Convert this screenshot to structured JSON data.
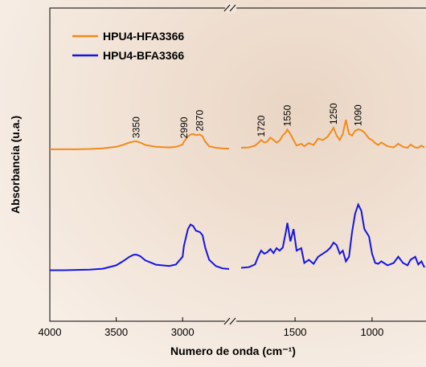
{
  "chart_data": {
    "type": "line",
    "x_label": "Numero de onda (cm⁻¹)",
    "y_label": "Absorbancia (u.a.)",
    "xlim": [
      4000,
      650
    ],
    "x_break": [
      2650,
      1850
    ],
    "ylim": [
      -2,
      100
    ],
    "xticks": [
      4000,
      3500,
      3000,
      1500,
      1000
    ],
    "peak_labels": [
      3350,
      2990,
      2870,
      1720,
      1550,
      1250,
      1090
    ],
    "x": [
      4000,
      3900,
      3800,
      3700,
      3600,
      3500,
      3450,
      3400,
      3370,
      3350,
      3320,
      3280,
      3200,
      3100,
      3050,
      3000,
      2990,
      2960,
      2940,
      2920,
      2900,
      2870,
      2850,
      2830,
      2800,
      2750,
      2700,
      2650,
      2200,
      1850,
      1800,
      1760,
      1740,
      1720,
      1700,
      1680,
      1660,
      1640,
      1620,
      1600,
      1580,
      1560,
      1550,
      1530,
      1510,
      1490,
      1460,
      1440,
      1410,
      1380,
      1350,
      1320,
      1290,
      1270,
      1250,
      1230,
      1210,
      1190,
      1170,
      1150,
      1130,
      1110,
      1090,
      1070,
      1050,
      1020,
      1000,
      980,
      960,
      940,
      900,
      860,
      830,
      800,
      770,
      750,
      720,
      700,
      680,
      660
    ],
    "series": [
      {
        "name": "HPU4-HFA3366",
        "color": "#f28a1e",
        "values": [
          54,
          54,
          54,
          54.1,
          54.3,
          54.8,
          55.4,
          56.2,
          56.5,
          56.6,
          56.2,
          55.4,
          54.8,
          54.6,
          54.8,
          55.5,
          56.5,
          58.2,
          58.8,
          59,
          58.6,
          58.8,
          58.2,
          56.5,
          55,
          54.5,
          54.3,
          54.2,
          null,
          54.5,
          54.6,
          55.2,
          56,
          57,
          56.2,
          56.5,
          57.8,
          57,
          56.2,
          56.8,
          58.5,
          59.5,
          60.4,
          59,
          57,
          55.2,
          55.8,
          55,
          56,
          55.4,
          57.5,
          57,
          58,
          59.5,
          61,
          58.5,
          57,
          59,
          63.6,
          59,
          58.5,
          60,
          60.5,
          60.2,
          59.5,
          57.5,
          57,
          56,
          55.4,
          56.2,
          55,
          54.6,
          55.8,
          54.8,
          54.5,
          55.5,
          54.6,
          54.5,
          55.2,
          54.6
        ]
      },
      {
        "name": "HPU4-BFA3366",
        "color": "#1414e6",
        "values": [
          14.6,
          14.6,
          14.7,
          14.8,
          15.1,
          16.2,
          17.5,
          19,
          19.6,
          19.7,
          19.2,
          17.8,
          16.4,
          16,
          16.5,
          19,
          22.5,
          28,
          29.5,
          29,
          27.5,
          27,
          26,
          22,
          18,
          16,
          15.2,
          15,
          null,
          15.4,
          15.6,
          16.5,
          19,
          21,
          20,
          20.5,
          21.5,
          20.2,
          21.8,
          21,
          22,
          27,
          30,
          24,
          28,
          21,
          21.8,
          17,
          18,
          16.7,
          19,
          20,
          21,
          22,
          23.6,
          22.8,
          20,
          21,
          17.5,
          19,
          27,
          33,
          36,
          34,
          28,
          25.6,
          20,
          17,
          16.7,
          17.5,
          16.2,
          17,
          19,
          17,
          16.2,
          18,
          19,
          16.5,
          17.5,
          15.5
        ]
      }
    ]
  }
}
